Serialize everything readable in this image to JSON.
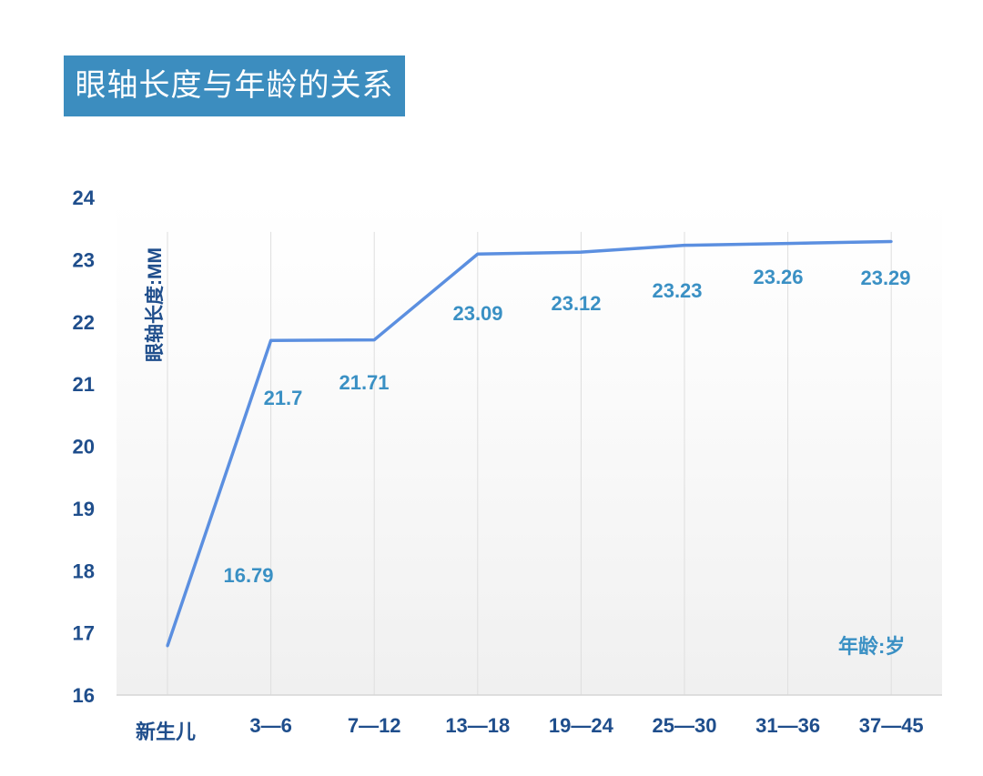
{
  "chart_data": {
    "type": "line",
    "title": "眼轴长度与年龄的关系",
    "ylabel": "眼轴长度:MM",
    "xlabel": "年龄:岁",
    "categories": [
      "新生儿",
      "3—6",
      "7—12",
      "13—18",
      "19—24",
      "25—30",
      "31—36",
      "37—45"
    ],
    "values": [
      16.79,
      21.7,
      21.71,
      23.09,
      23.12,
      23.23,
      23.26,
      23.29
    ],
    "data_labels": [
      "16.79",
      "21.7",
      "21.71",
      "23.09",
      "23.12",
      "23.23",
      "23.26",
      "23.29"
    ],
    "ylim": [
      16,
      24
    ],
    "yticks": [
      "16",
      "17",
      "18",
      "19",
      "20",
      "21",
      "22",
      "23",
      "24"
    ],
    "grid": "vertical",
    "line_color": "#5b8fe0",
    "label_color": "#3a90c4",
    "axis_text_color": "#1f4e8c",
    "title_bg": "#3c8dbf"
  }
}
